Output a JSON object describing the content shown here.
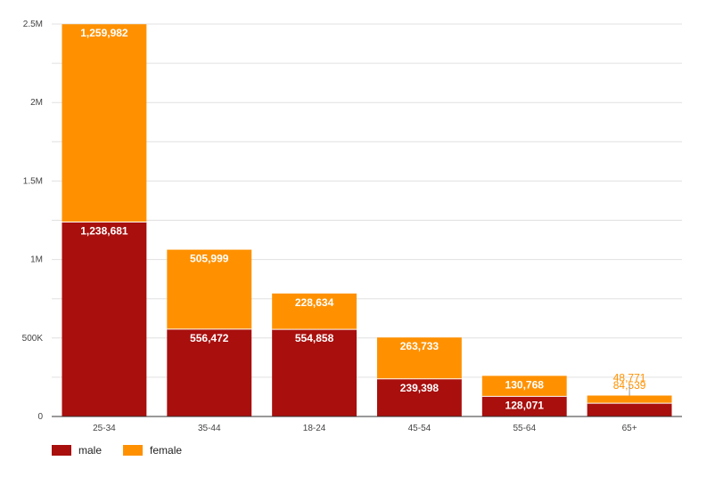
{
  "chart_data": {
    "type": "bar",
    "stacked": true,
    "categories": [
      "25-34",
      "35-44",
      "18-24",
      "45-54",
      "55-64",
      "65+"
    ],
    "series": [
      {
        "name": "male",
        "color": "#a80f0d",
        "values": [
          1238681,
          556472,
          554858,
          239398,
          128071,
          84539
        ],
        "labels": [
          "1,238,681",
          "556,472",
          "554,858",
          "239,398",
          "128,071",
          "84,539"
        ]
      },
      {
        "name": "female",
        "color": "#ff9100",
        "values": [
          1259982,
          505999,
          228634,
          263733,
          130768,
          48771
        ],
        "labels": [
          "1,259,982",
          "505,999",
          "228,634",
          "263,733",
          "130,768",
          "48,771"
        ]
      }
    ],
    "ylim": [
      0,
      2500000
    ],
    "yticks": [
      0,
      500000,
      1000000,
      1500000,
      2000000,
      2500000
    ],
    "ytick_labels": [
      "0",
      "500K",
      "1M",
      "1.5M",
      "2M",
      "2.5M"
    ],
    "grid": true,
    "legend_position": "bottom-left"
  }
}
